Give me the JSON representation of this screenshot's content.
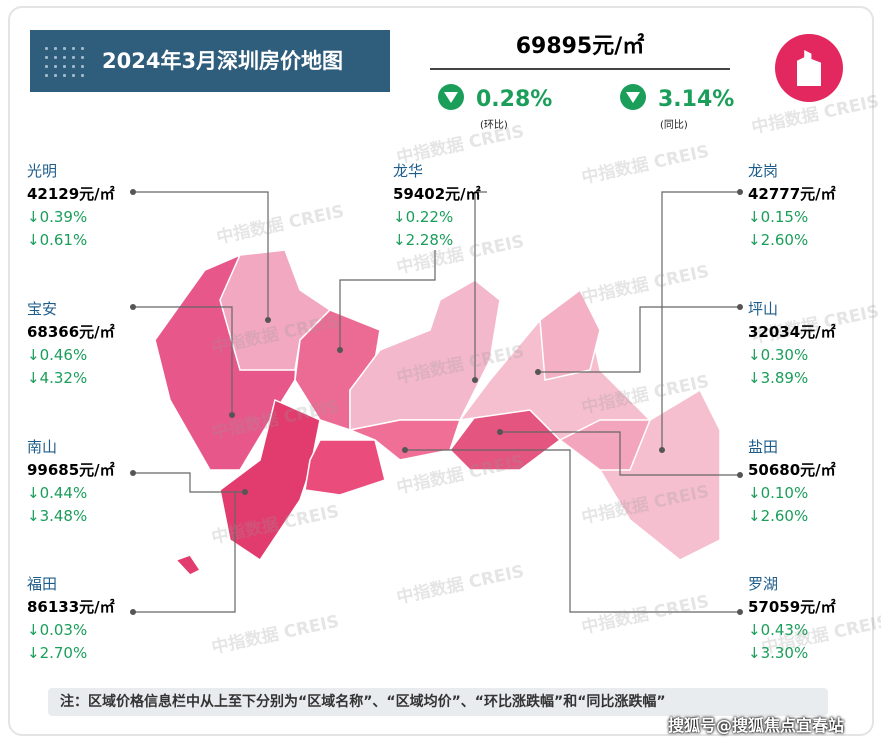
{
  "header": {
    "title": "2024年3月深圳房价地图",
    "price": "69895元/㎡",
    "mom": "0.28%",
    "mom_label": "(环比)",
    "yoy": "3.14%",
    "yoy_label": "(同比)"
  },
  "districts": [
    {
      "name": "光明",
      "price": "42129元/㎡",
      "mom": "↓0.39%",
      "yoy": "↓0.61%"
    },
    {
      "name": "宝安",
      "price": "68366元/㎡",
      "mom": "↓0.46%",
      "yoy": "↓4.32%"
    },
    {
      "name": "南山",
      "price": "99685元/㎡",
      "mom": "↓0.44%",
      "yoy": "↓3.48%"
    },
    {
      "name": "福田",
      "price": "86133元/㎡",
      "mom": "↓0.03%",
      "yoy": "↓2.70%"
    },
    {
      "name": "龙华",
      "price": "59402元/㎡",
      "mom": "↓0.22%",
      "yoy": "↓2.28%"
    },
    {
      "name": "龙岗",
      "price": "42777元/㎡",
      "mom": "↓0.15%",
      "yoy": "↓2.60%"
    },
    {
      "name": "坪山",
      "price": "32034元/㎡",
      "mom": "↓0.30%",
      "yoy": "↓3.89%"
    },
    {
      "name": "盐田",
      "price": "50680元/㎡",
      "mom": "↓0.10%",
      "yoy": "↓2.60%"
    },
    {
      "name": "罗湖",
      "price": "57059元/㎡",
      "mom": "↓0.43%",
      "yoy": "↓3.30%"
    }
  ],
  "note": "注：区域价格信息栏中从上至下分别为“区域名称”、“区域均价”、“环比涨跌幅”和“同比涨跌幅”",
  "watermark": "中指数据 CREIS",
  "footer": "搜狐号@搜狐焦点宜春站"
}
